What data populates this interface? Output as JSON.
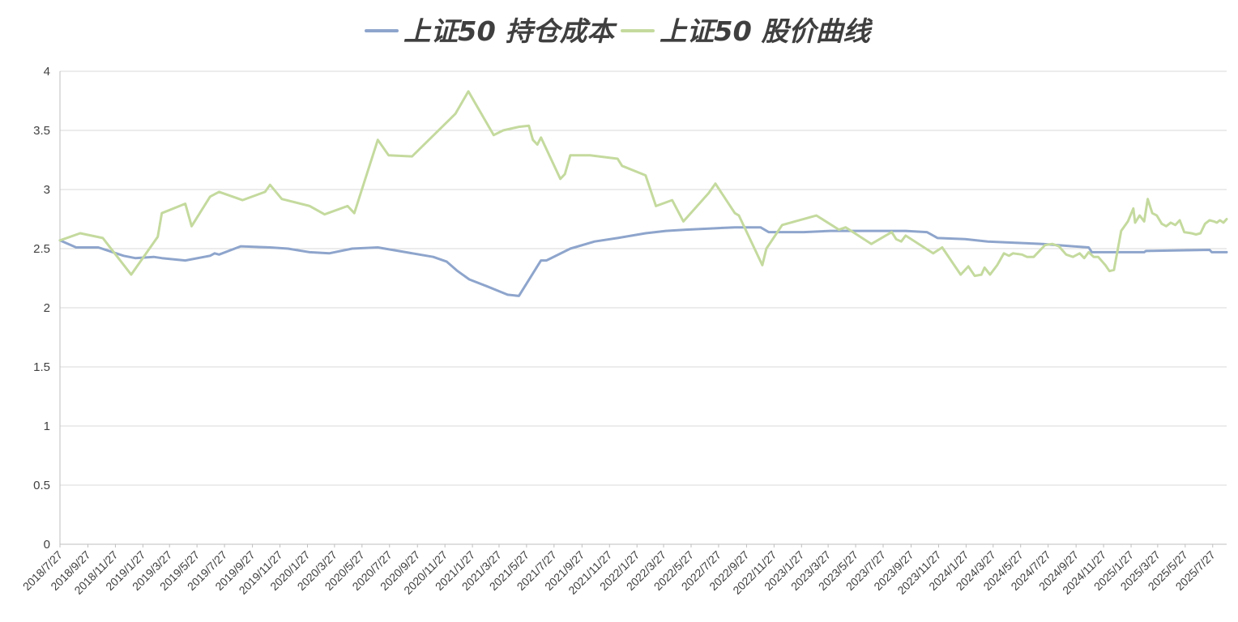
{
  "chart_data": {
    "type": "line",
    "title": "",
    "xlabel": "",
    "ylabel": "",
    "ylim": [
      0,
      4
    ],
    "yticks": [
      0,
      0.5,
      1,
      1.5,
      2,
      2.5,
      3,
      3.5,
      4
    ],
    "ytick_labels": [
      "0",
      "0.5",
      "1",
      "1.5",
      "2",
      "2.5",
      "3",
      "3.5",
      "4"
    ],
    "xlim": [
      "2018-07-27",
      "2025-08-27"
    ],
    "xtick_labels": [
      "2018/7/27",
      "2018/9/27",
      "2018/11/27",
      "2019/1/27",
      "2019/3/27",
      "2019/5/27",
      "2019/7/27",
      "2019/9/27",
      "2019/11/27",
      "2020/1/27",
      "2020/3/27",
      "2020/5/27",
      "2020/7/27",
      "2020/9/27",
      "2020/11/27",
      "2021/1/27",
      "2021/3/27",
      "2021/5/27",
      "2021/7/27",
      "2021/9/27",
      "2021/11/27",
      "2022/1/27",
      "2022/3/27",
      "2022/5/27",
      "2022/7/27",
      "2022/9/27",
      "2022/11/27",
      "2023/1/27",
      "2023/3/27",
      "2023/5/27",
      "2023/7/27",
      "2023/9/27",
      "2023/11/27",
      "2024/1/27",
      "2024/3/27",
      "2024/5/27",
      "2024/7/27",
      "2024/9/27",
      "2024/11/27",
      "2025/1/27",
      "2025/3/27",
      "2025/5/27",
      "2025/7/27"
    ],
    "grid": true,
    "legend_position": "top-center",
    "series": [
      {
        "name": "上证50 持仓成本",
        "color": "#8ea5cc",
        "points": [
          [
            "2018-07-27",
            2.57
          ],
          [
            "2018-09-01",
            2.51
          ],
          [
            "2018-10-20",
            2.51
          ],
          [
            "2018-12-15",
            2.44
          ],
          [
            "2019-01-10",
            2.42
          ],
          [
            "2019-02-20",
            2.43
          ],
          [
            "2019-03-10",
            2.42
          ],
          [
            "2019-05-01",
            2.4
          ],
          [
            "2019-06-25",
            2.44
          ],
          [
            "2019-07-05",
            2.46
          ],
          [
            "2019-07-15",
            2.45
          ],
          [
            "2019-09-01",
            2.52
          ],
          [
            "2019-11-05",
            2.51
          ],
          [
            "2019-12-15",
            2.5
          ],
          [
            "2020-02-01",
            2.47
          ],
          [
            "2020-03-15",
            2.46
          ],
          [
            "2020-05-05",
            2.5
          ],
          [
            "2020-07-01",
            2.51
          ],
          [
            "2020-09-01",
            2.47
          ],
          [
            "2020-11-01",
            2.43
          ],
          [
            "2020-12-01",
            2.39
          ],
          [
            "2020-12-25",
            2.31
          ],
          [
            "2021-01-20",
            2.24
          ],
          [
            "2021-03-01",
            2.18
          ],
          [
            "2021-04-15",
            2.11
          ],
          [
            "2021-05-10",
            2.1
          ],
          [
            "2021-06-28",
            2.4
          ],
          [
            "2021-07-10",
            2.4
          ],
          [
            "2021-09-01",
            2.5
          ],
          [
            "2021-10-25",
            2.56
          ],
          [
            "2021-12-15",
            2.59
          ],
          [
            "2022-02-15",
            2.63
          ],
          [
            "2022-04-01",
            2.65
          ],
          [
            "2022-05-15",
            2.66
          ],
          [
            "2022-07-05",
            2.67
          ],
          [
            "2022-09-01",
            2.68
          ],
          [
            "2022-10-28",
            2.68
          ],
          [
            "2022-11-15",
            2.64
          ],
          [
            "2023-02-01",
            2.64
          ],
          [
            "2023-04-01",
            2.65
          ],
          [
            "2023-06-15",
            2.65
          ],
          [
            "2023-09-15",
            2.65
          ],
          [
            "2023-11-01",
            2.64
          ],
          [
            "2023-11-25",
            2.59
          ],
          [
            "2024-01-25",
            2.58
          ],
          [
            "2024-03-15",
            2.56
          ],
          [
            "2024-05-15",
            2.55
          ],
          [
            "2024-07-15",
            2.54
          ],
          [
            "2024-09-20",
            2.52
          ],
          [
            "2024-10-25",
            2.51
          ],
          [
            "2024-11-01",
            2.47
          ],
          [
            "2025-02-25",
            2.47
          ],
          [
            "2025-03-01",
            2.48
          ],
          [
            "2025-07-20",
            2.49
          ],
          [
            "2025-07-25",
            2.47
          ],
          [
            "2025-08-27",
            2.47
          ]
        ]
      },
      {
        "name": "上证50 股价曲线",
        "color": "#c4da9e",
        "points": [
          [
            "2018-07-27",
            2.57
          ],
          [
            "2018-09-10",
            2.63
          ],
          [
            "2018-10-30",
            2.59
          ],
          [
            "2019-01-01",
            2.28
          ],
          [
            "2019-03-01",
            2.6
          ],
          [
            "2019-03-10",
            2.8
          ],
          [
            "2019-05-01",
            2.88
          ],
          [
            "2019-05-15",
            2.69
          ],
          [
            "2019-06-25",
            2.94
          ],
          [
            "2019-07-05",
            2.96
          ],
          [
            "2019-07-15",
            2.98
          ],
          [
            "2019-09-05",
            2.91
          ],
          [
            "2019-10-25",
            2.98
          ],
          [
            "2019-11-05",
            3.04
          ],
          [
            "2019-12-01",
            2.92
          ],
          [
            "2020-02-01",
            2.86
          ],
          [
            "2020-03-05",
            2.79
          ],
          [
            "2020-04-25",
            2.86
          ],
          [
            "2020-05-10",
            2.8
          ],
          [
            "2020-07-01",
            3.42
          ],
          [
            "2020-07-25",
            3.29
          ],
          [
            "2020-09-15",
            3.28
          ],
          [
            "2020-12-20",
            3.64
          ],
          [
            "2021-01-18",
            3.83
          ],
          [
            "2021-03-15",
            3.46
          ],
          [
            "2021-04-05",
            3.5
          ],
          [
            "2021-05-10",
            3.53
          ],
          [
            "2021-06-01",
            3.54
          ],
          [
            "2021-06-10",
            3.42
          ],
          [
            "2021-06-20",
            3.38
          ],
          [
            "2021-06-28",
            3.44
          ],
          [
            "2021-08-10",
            3.09
          ],
          [
            "2021-08-20",
            3.13
          ],
          [
            "2021-09-01",
            3.29
          ],
          [
            "2021-10-15",
            3.29
          ],
          [
            "2021-12-15",
            3.26
          ],
          [
            "2021-12-25",
            3.2
          ],
          [
            "2022-02-15",
            3.12
          ],
          [
            "2022-03-10",
            2.86
          ],
          [
            "2022-04-15",
            2.91
          ],
          [
            "2022-05-10",
            2.73
          ],
          [
            "2022-07-05",
            2.97
          ],
          [
            "2022-07-20",
            3.05
          ],
          [
            "2022-09-01",
            2.8
          ],
          [
            "2022-09-10",
            2.78
          ],
          [
            "2022-11-01",
            2.36
          ],
          [
            "2022-11-10",
            2.5
          ],
          [
            "2022-12-15",
            2.7
          ],
          [
            "2023-03-01",
            2.78
          ],
          [
            "2023-04-20",
            2.66
          ],
          [
            "2023-05-05",
            2.68
          ],
          [
            "2023-07-01",
            2.54
          ],
          [
            "2023-08-15",
            2.64
          ],
          [
            "2023-08-25",
            2.58
          ],
          [
            "2023-09-05",
            2.56
          ],
          [
            "2023-09-15",
            2.61
          ],
          [
            "2023-11-15",
            2.46
          ],
          [
            "2023-12-05",
            2.51
          ],
          [
            "2024-01-15",
            2.28
          ],
          [
            "2024-02-01",
            2.35
          ],
          [
            "2024-02-15",
            2.27
          ],
          [
            "2024-03-01",
            2.28
          ],
          [
            "2024-03-08",
            2.34
          ],
          [
            "2024-03-20",
            2.28
          ],
          [
            "2024-04-05",
            2.36
          ],
          [
            "2024-04-20",
            2.46
          ],
          [
            "2024-05-01",
            2.44
          ],
          [
            "2024-05-10",
            2.46
          ],
          [
            "2024-05-30",
            2.45
          ],
          [
            "2024-06-10",
            2.43
          ],
          [
            "2024-06-25",
            2.43
          ],
          [
            "2024-07-20",
            2.53
          ],
          [
            "2024-08-05",
            2.54
          ],
          [
            "2024-08-20",
            2.52
          ],
          [
            "2024-09-05",
            2.45
          ],
          [
            "2024-09-20",
            2.43
          ],
          [
            "2024-10-05",
            2.46
          ],
          [
            "2024-10-15",
            2.42
          ],
          [
            "2024-10-25",
            2.47
          ],
          [
            "2024-11-05",
            2.43
          ],
          [
            "2024-11-15",
            2.43
          ],
          [
            "2024-12-01",
            2.36
          ],
          [
            "2024-12-10",
            2.31
          ],
          [
            "2024-12-20",
            2.32
          ],
          [
            "2025-01-05",
            2.65
          ],
          [
            "2025-01-20",
            2.73
          ],
          [
            "2025-02-01",
            2.84
          ],
          [
            "2025-02-05",
            2.72
          ],
          [
            "2025-02-15",
            2.78
          ],
          [
            "2025-02-25",
            2.73
          ],
          [
            "2025-03-05",
            2.92
          ],
          [
            "2025-03-15",
            2.8
          ],
          [
            "2025-03-25",
            2.78
          ],
          [
            "2025-04-05",
            2.71
          ],
          [
            "2025-04-15",
            2.69
          ],
          [
            "2025-04-25",
            2.72
          ],
          [
            "2025-05-05",
            2.7
          ],
          [
            "2025-05-15",
            2.74
          ],
          [
            "2025-05-25",
            2.64
          ],
          [
            "2025-06-10",
            2.63
          ],
          [
            "2025-06-20",
            2.62
          ],
          [
            "2025-06-30",
            2.63
          ],
          [
            "2025-07-10",
            2.71
          ],
          [
            "2025-07-20",
            2.74
          ],
          [
            "2025-07-30",
            2.73
          ],
          [
            "2025-08-05",
            2.72
          ],
          [
            "2025-08-12",
            2.74
          ],
          [
            "2025-08-20",
            2.72
          ],
          [
            "2025-08-27",
            2.75
          ]
        ]
      }
    ]
  }
}
